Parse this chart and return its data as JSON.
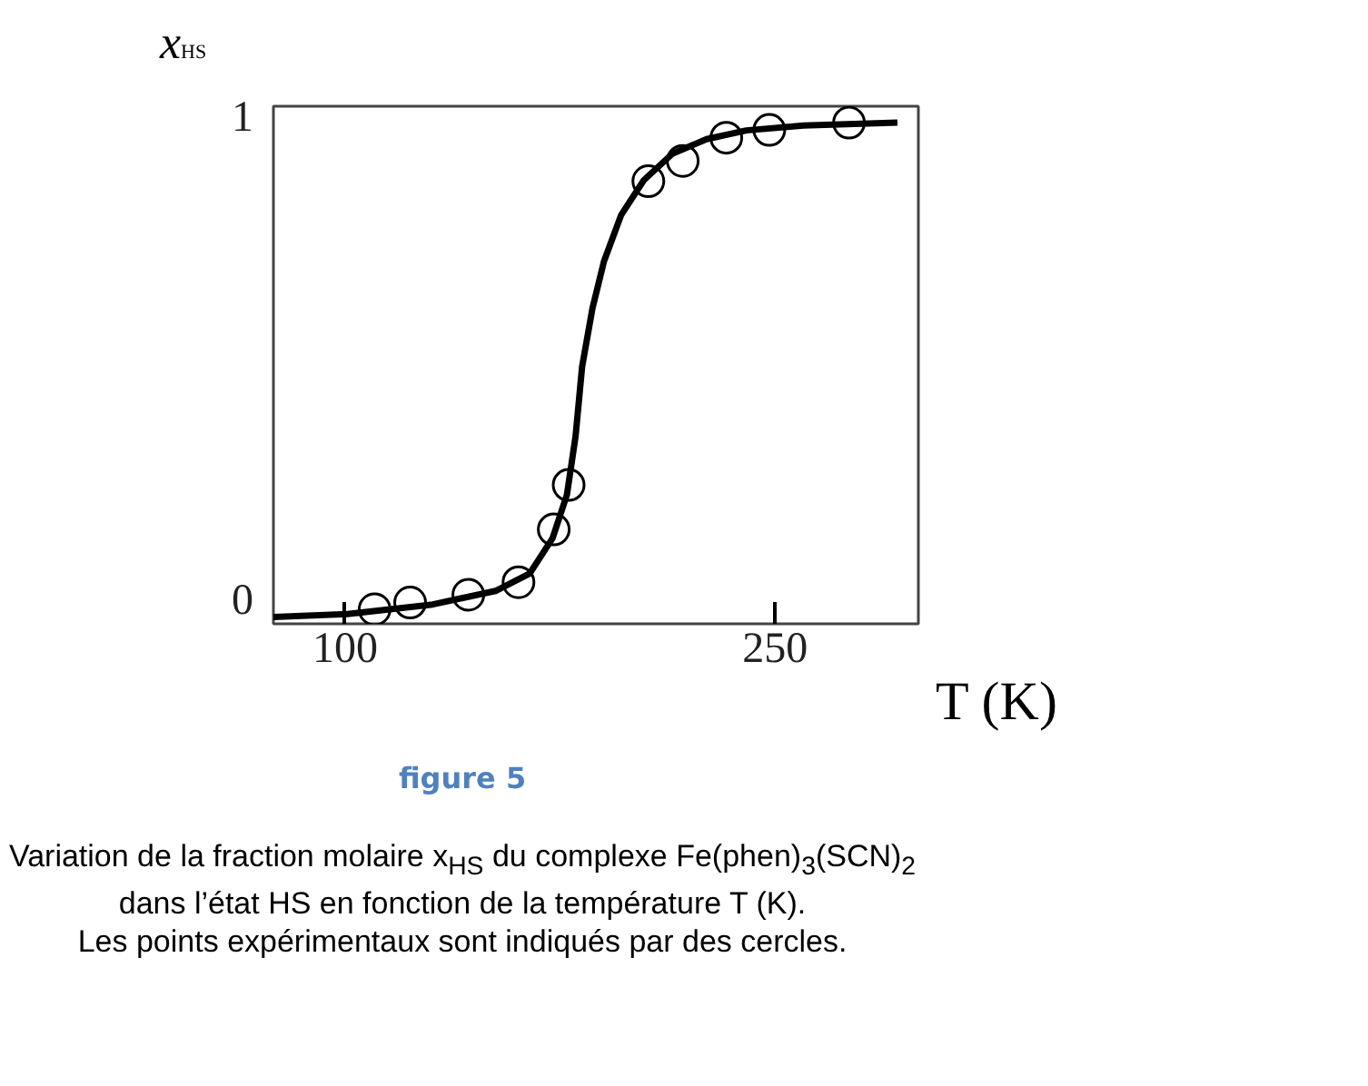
{
  "chart_data": {
    "type": "line",
    "xlabel": "T (K)",
    "ylabel": "x$_{HS}$",
    "xlim": [
      75,
      300
    ],
    "ylim": [
      -0.05,
      1.02
    ],
    "xticks": [
      100,
      250
    ],
    "yticks": [
      0,
      1
    ],
    "grid": false,
    "series": [
      {
        "type": "line",
        "color": "#000000",
        "line_style": "solid",
        "marker": "none",
        "x": [
          75,
          100.8,
          130.6,
          152.5,
          164.4,
          172.4,
          177.4,
          180.4,
          182.7,
          186.3,
          190.3,
          196.3,
          204.2,
          214.2,
          226.1,
          240,
          259.9,
          292.7
        ],
        "values": [
          -0.036,
          -0.03,
          -0.01,
          0.018,
          0.054,
          0.127,
          0.217,
          0.337,
          0.482,
          0.602,
          0.699,
          0.795,
          0.867,
          0.922,
          0.952,
          0.97,
          0.98,
          0.986
        ]
      },
      {
        "type": "scatter",
        "color": "#000000",
        "marker": "circle",
        "x": [
          110.3,
          122.7,
          143,
          160.5,
          172.8,
          178,
          205.8,
          217.8,
          233,
          248,
          275.8
        ],
        "values": [
          -0.02,
          -0.006,
          0.01,
          0.036,
          0.145,
          0.237,
          0.865,
          0.907,
          0.955,
          0.971,
          0.986
        ]
      }
    ],
    "annotations": [
      "figure 5",
      "Variation de la fraction molaire x$_{HS}$ du complexe Fe(phen)$_{3}$(SCN)$_{2}$",
      "dans l’état HS en fonction de la température T (K).",
      "Les points expérimentaux  sont indiqués par des cercles."
    ]
  }
}
